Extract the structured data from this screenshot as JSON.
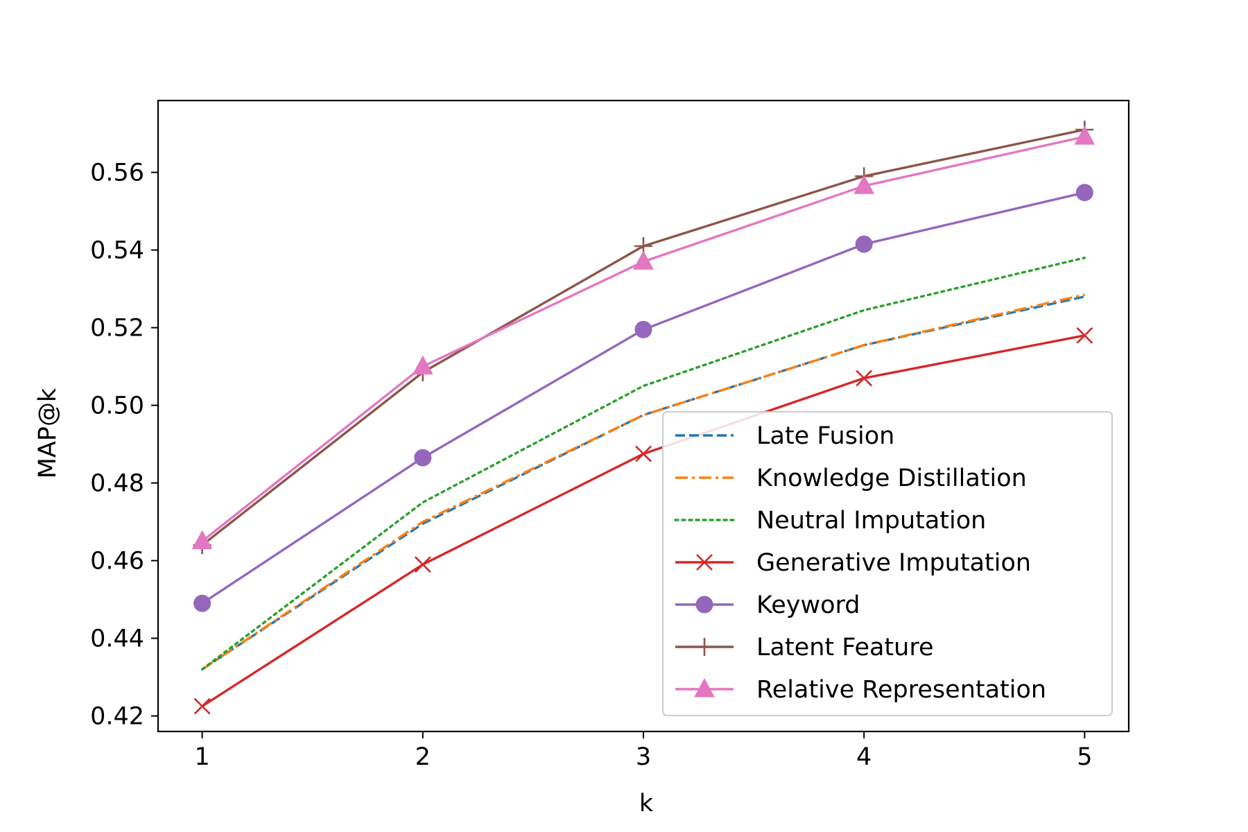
{
  "chart_data": {
    "type": "line",
    "title": "",
    "xlabel": "k",
    "ylabel": "MAP@k",
    "x": [
      1,
      2,
      3,
      4,
      5
    ],
    "xlim": [
      0.8,
      5.2
    ],
    "ylim": [
      0.416,
      0.5785
    ],
    "x_ticks": [
      "1",
      "2",
      "3",
      "4",
      "5"
    ],
    "y_ticks": [
      "0.42",
      "0.44",
      "0.46",
      "0.48",
      "0.50",
      "0.52",
      "0.54",
      "0.56"
    ],
    "y_tick_values": [
      0.42,
      0.44,
      0.46,
      0.48,
      0.5,
      0.52,
      0.54,
      0.56
    ],
    "grid": false,
    "legend_position": "lower-right",
    "series": [
      {
        "name": "Late Fusion",
        "values": [
          0.432,
          0.4695,
          0.4975,
          0.5155,
          0.528
        ],
        "color": "#1f77b4",
        "linestyle": "dashed",
        "marker": "none"
      },
      {
        "name": "Knowledge Distillation",
        "values": [
          0.432,
          0.47,
          0.4975,
          0.5155,
          0.5285
        ],
        "color": "#ff7f0e",
        "linestyle": "dashdot",
        "marker": "none"
      },
      {
        "name": "Neutral Imputation",
        "values": [
          0.432,
          0.475,
          0.505,
          0.5245,
          0.538
        ],
        "color": "#2ca02c",
        "linestyle": "dotted",
        "marker": "none"
      },
      {
        "name": "Generative Imputation",
        "values": [
          0.4225,
          0.459,
          0.4875,
          0.507,
          0.518
        ],
        "color": "#d62728",
        "linestyle": "solid",
        "marker": "x"
      },
      {
        "name": "Keyword",
        "values": [
          0.449,
          0.4865,
          0.5195,
          0.5415,
          0.5548
        ],
        "color": "#9467bd",
        "linestyle": "solid",
        "marker": "circle"
      },
      {
        "name": "Latent Feature",
        "values": [
          0.464,
          0.5085,
          0.541,
          0.559,
          0.571
        ],
        "color": "#8c564b",
        "linestyle": "solid",
        "marker": "plus"
      },
      {
        "name": "Relative Representation",
        "values": [
          0.465,
          0.51,
          0.537,
          0.5565,
          0.5692
        ],
        "color": "#e377c2",
        "linestyle": "solid",
        "marker": "triangle"
      }
    ]
  }
}
